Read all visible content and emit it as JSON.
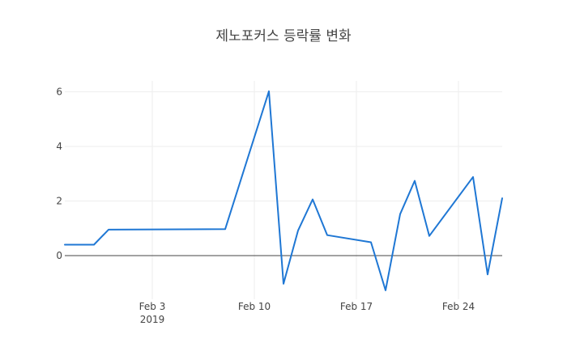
{
  "chart_data": {
    "type": "line",
    "title": "제노포커스 등락률 변화",
    "xlabel": "",
    "ylabel": "",
    "x": [
      "2019-01-28",
      "2019-01-30",
      "2019-01-31",
      "2019-02-08",
      "2019-02-11",
      "2019-02-12",
      "2019-02-13",
      "2019-02-14",
      "2019-02-15",
      "2019-02-18",
      "2019-02-19",
      "2019-02-20",
      "2019-02-21",
      "2019-02-22",
      "2019-02-25",
      "2019-02-26",
      "2019-02-27"
    ],
    "series": [
      {
        "values": [
          0.4,
          0.4,
          0.95,
          0.97,
          6.02,
          -1.03,
          0.92,
          2.06,
          0.75,
          0.49,
          -1.27,
          1.52,
          2.74,
          0.72,
          2.88,
          -0.69,
          2.1
        ],
        "color": "#1f77d4"
      }
    ],
    "xlim": [
      "2019-01-28",
      "2019-02-27"
    ],
    "ylim": [
      -1.6,
      6.4
    ],
    "y_ticks": [
      0,
      2,
      4,
      6
    ],
    "x_ticks": [
      {
        "date": "2019-02-03",
        "label": "Feb 3",
        "sublabel": "2019"
      },
      {
        "date": "2019-02-10",
        "label": "Feb 10"
      },
      {
        "date": "2019-02-17",
        "label": "Feb 17"
      },
      {
        "date": "2019-02-24",
        "label": "Feb 24"
      }
    ],
    "grid": true,
    "zero_line": true,
    "colors": {
      "grid": "#eeeeee",
      "zero_line": "#444444",
      "text": "#444444"
    }
  }
}
